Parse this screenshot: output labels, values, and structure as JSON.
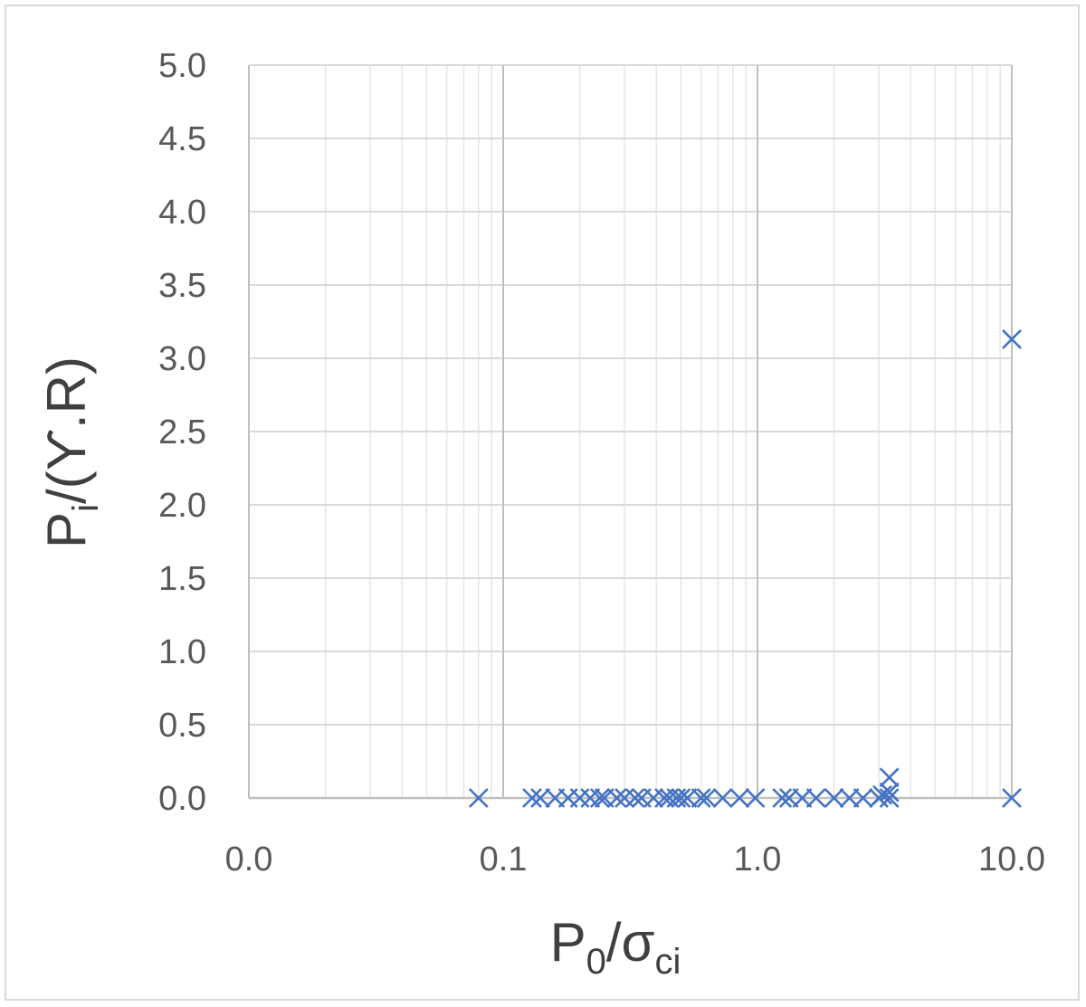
{
  "chart_data": {
    "type": "scatter",
    "xscale": "log",
    "xlim": [
      0.01,
      10
    ],
    "ylim": [
      0,
      5
    ],
    "grid": true,
    "legend": "none",
    "marker": "x",
    "color": "#4472c4",
    "xlabel": {
      "main": "P",
      "sub": "0",
      "rest": "/σ",
      "sub2": "ci"
    },
    "ylabel": {
      "main": "P",
      "sub": "i",
      "rest": "/(ϒ.R)"
    },
    "x_ticks": [
      {
        "value": 0.01,
        "label": "0.0"
      },
      {
        "value": 0.1,
        "label": "0.1"
      },
      {
        "value": 1,
        "label": "1.0"
      },
      {
        "value": 10,
        "label": "10.0"
      }
    ],
    "y_ticks": [
      {
        "value": 0,
        "label": "0.0"
      },
      {
        "value": 0.5,
        "label": "0.5"
      },
      {
        "value": 1,
        "label": "1.0"
      },
      {
        "value": 1.5,
        "label": "1.5"
      },
      {
        "value": 2,
        "label": "2.0"
      },
      {
        "value": 2.5,
        "label": "2.5"
      },
      {
        "value": 3,
        "label": "3.0"
      },
      {
        "value": 3.5,
        "label": "3.5"
      },
      {
        "value": 4,
        "label": "4.0"
      },
      {
        "value": 4.5,
        "label": "4.5"
      },
      {
        "value": 5,
        "label": "5.0"
      }
    ],
    "points": [
      {
        "x": 0.08,
        "y": 0
      },
      {
        "x": 0.13,
        "y": 0
      },
      {
        "x": 0.14,
        "y": 0
      },
      {
        "x": 0.16,
        "y": 0
      },
      {
        "x": 0.18,
        "y": 0
      },
      {
        "x": 0.2,
        "y": 0
      },
      {
        "x": 0.22,
        "y": 0
      },
      {
        "x": 0.24,
        "y": 0
      },
      {
        "x": 0.25,
        "y": 0
      },
      {
        "x": 0.28,
        "y": 0
      },
      {
        "x": 0.3,
        "y": 0
      },
      {
        "x": 0.33,
        "y": 0
      },
      {
        "x": 0.35,
        "y": 0
      },
      {
        "x": 0.39,
        "y": 0
      },
      {
        "x": 0.43,
        "y": 0
      },
      {
        "x": 0.45,
        "y": 0
      },
      {
        "x": 0.48,
        "y": 0
      },
      {
        "x": 0.5,
        "y": 0
      },
      {
        "x": 0.53,
        "y": 0
      },
      {
        "x": 0.6,
        "y": 0
      },
      {
        "x": 0.63,
        "y": 0
      },
      {
        "x": 0.73,
        "y": 0
      },
      {
        "x": 0.85,
        "y": 0
      },
      {
        "x": 0.98,
        "y": 0
      },
      {
        "x": 1.25,
        "y": 0
      },
      {
        "x": 1.33,
        "y": 0
      },
      {
        "x": 1.5,
        "y": 0
      },
      {
        "x": 1.7,
        "y": 0
      },
      {
        "x": 2.0,
        "y": 0
      },
      {
        "x": 2.3,
        "y": 0
      },
      {
        "x": 2.6,
        "y": 0
      },
      {
        "x": 3.0,
        "y": 0
      },
      {
        "x": 3.3,
        "y": 0
      },
      {
        "x": 3.3,
        "y": 0.04
      },
      {
        "x": 3.3,
        "y": 0.14
      },
      {
        "x": 3.1,
        "y": 0.02
      },
      {
        "x": 10,
        "y": 0
      },
      {
        "x": 10,
        "y": 3.13
      }
    ]
  }
}
